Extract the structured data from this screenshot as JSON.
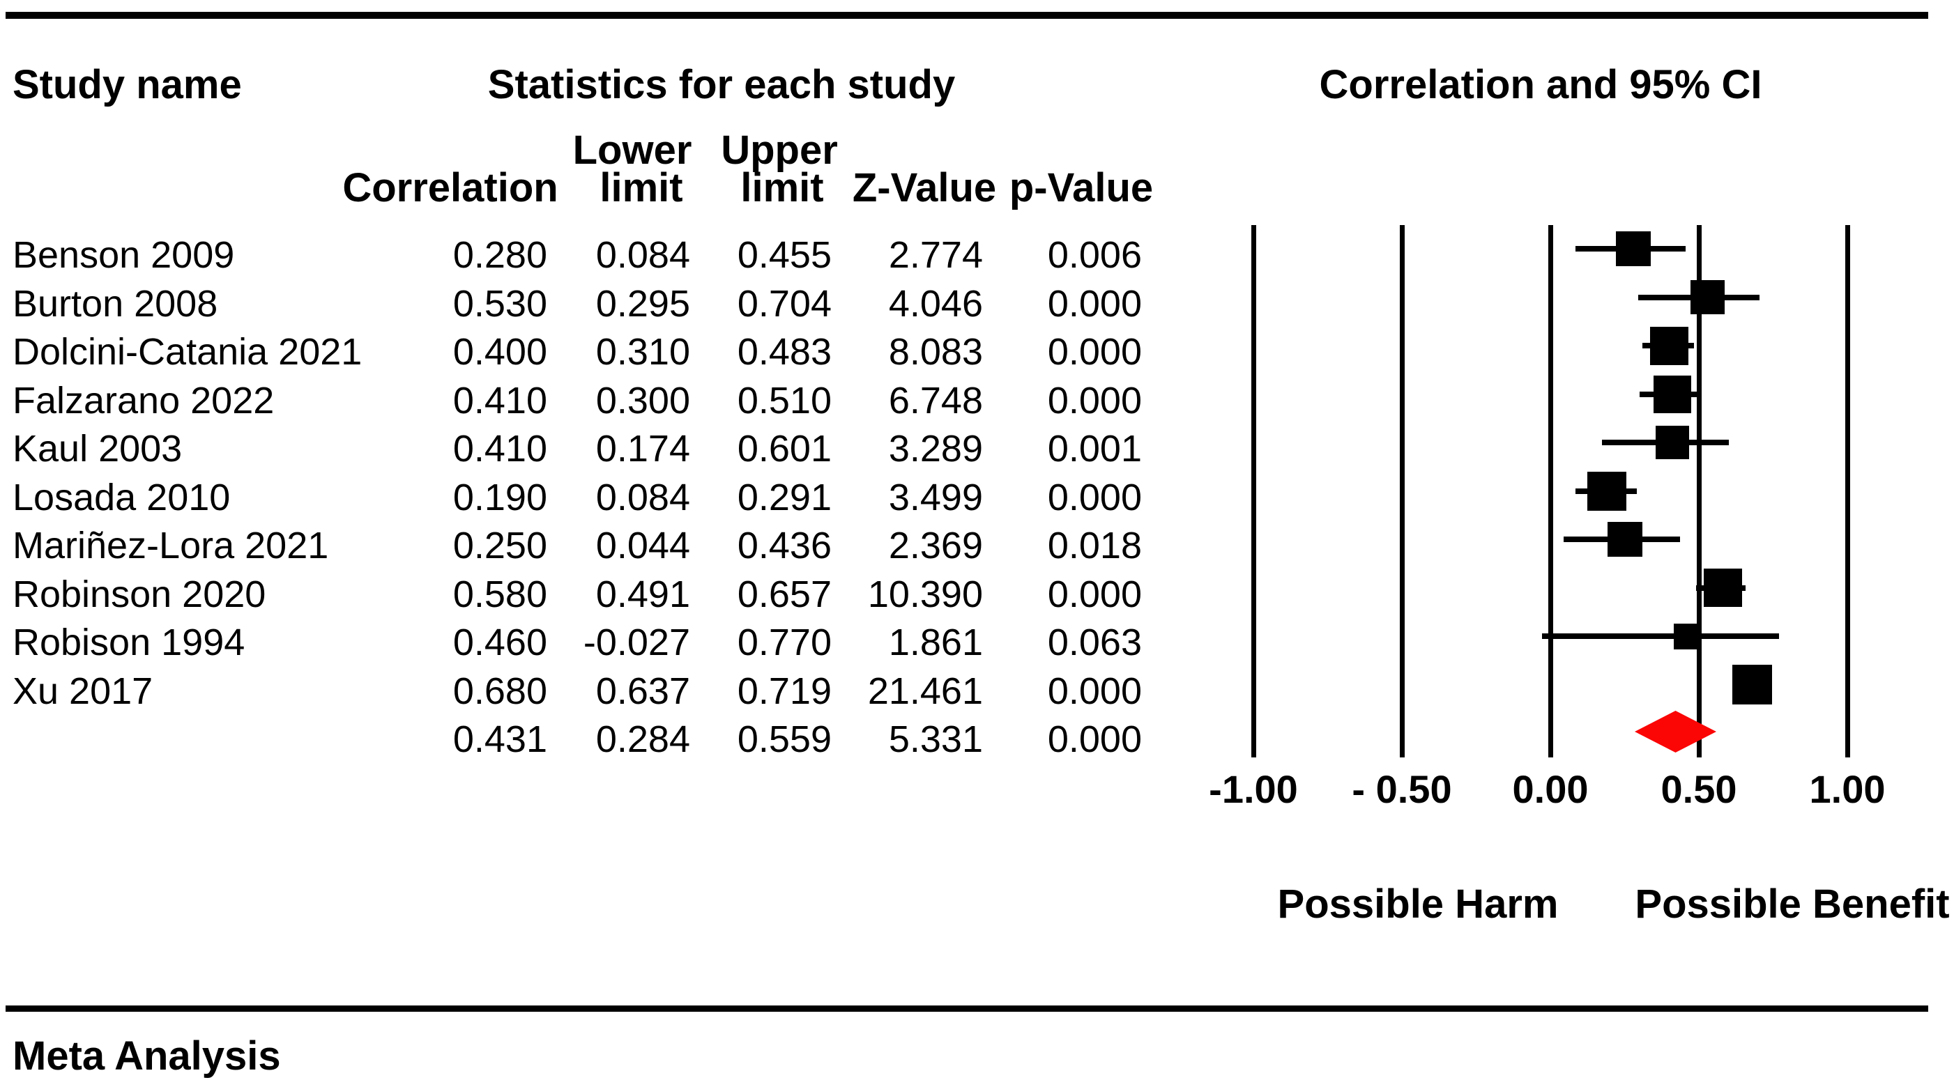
{
  "header": {
    "study_name_label": "Study name",
    "stats_title": "Statistics for each study",
    "plot_title": "Correlation and 95% CI",
    "columns_line1": {
      "lower": "Lower",
      "upper": "Upper"
    },
    "columns_line2": {
      "correlation": "Correlation",
      "lower_limit": "limit",
      "upper_limit": "limit",
      "z_value": "Z-Value",
      "p_value": "p-Value"
    }
  },
  "chart_data": {
    "type": "forest_plot",
    "title": "Correlation and 95% CI",
    "x_axis": {
      "range": [
        -1,
        1
      ],
      "tick_values": [
        -1,
        -0.5,
        0,
        0.5,
        1
      ],
      "tick_labels": [
        "-1.00",
        "- 0.50",
        "0.00",
        "0.50",
        "1.00"
      ],
      "grid": "vertical-lines"
    },
    "studies": [
      {
        "name": "Benson 2009",
        "correlation": "0.280",
        "lower_limit": "0.084",
        "upper_limit": "0.455",
        "z_value": "2.774",
        "p_value": "0.006",
        "marker_px": 50
      },
      {
        "name": "Burton 2008",
        "correlation": "0.530",
        "lower_limit": "0.295",
        "upper_limit": "0.704",
        "z_value": "4.046",
        "p_value": "0.000",
        "marker_px": 49
      },
      {
        "name": "Dolcini-Catania 2021",
        "correlation": "0.400",
        "lower_limit": "0.310",
        "upper_limit": "0.483",
        "z_value": "8.083",
        "p_value": "0.000",
        "marker_px": 55
      },
      {
        "name": "Falzarano 2022",
        "correlation": "0.410",
        "lower_limit": "0.300",
        "upper_limit": "0.510",
        "z_value": "6.748",
        "p_value": "0.000",
        "marker_px": 54
      },
      {
        "name": "Kaul 2003",
        "correlation": "0.410",
        "lower_limit": "0.174",
        "upper_limit": "0.601",
        "z_value": "3.289",
        "p_value": "0.001",
        "marker_px": 48
      },
      {
        "name": "Losada 2010",
        "correlation": "0.190",
        "lower_limit": "0.084",
        "upper_limit": "0.291",
        "z_value": "3.499",
        "p_value": "0.000",
        "marker_px": 56
      },
      {
        "name": "Mariñez-Lora 2021",
        "correlation": "0.250",
        "lower_limit": "0.044",
        "upper_limit": "0.436",
        "z_value": "2.369",
        "p_value": "0.018",
        "marker_px": 50
      },
      {
        "name": "Robinson 2020",
        "correlation": "0.580",
        "lower_limit": "0.491",
        "upper_limit": "0.657",
        "z_value": "10.390",
        "p_value": "0.000",
        "marker_px": 55
      },
      {
        "name": "Robison 1994",
        "correlation": "0.460",
        "lower_limit": "-0.027",
        "upper_limit": "0.770",
        "z_value": "1.861",
        "p_value": "0.063",
        "marker_px": 37
      },
      {
        "name": "Xu 2017",
        "correlation": "0.680",
        "lower_limit": "0.637",
        "upper_limit": "0.719",
        "z_value": "21.461",
        "p_value": "0.000",
        "marker_px": 57
      }
    ],
    "summary": {
      "correlation": "0.431",
      "lower_limit": "0.284",
      "upper_limit": "0.559",
      "z_value": "5.331",
      "p_value": "0.000"
    },
    "colors": {
      "marker": "#000000",
      "summary_diamond": "#FB0505",
      "text": "#000000"
    },
    "axis_region_labels": {
      "left": "Possible Harm",
      "right": "Possible Benefit"
    }
  },
  "footer": {
    "title": "Meta Analysis"
  }
}
